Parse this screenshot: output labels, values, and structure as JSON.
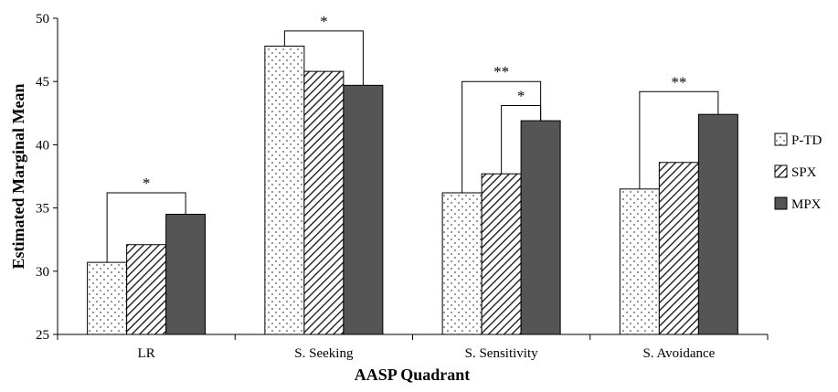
{
  "chart_data": {
    "type": "bar",
    "title": "",
    "xlabel": "AASP Quadrant",
    "ylabel": "Estimated Marginal Mean",
    "categories": [
      "LR",
      "S. Seeking",
      "S. Sensitivity",
      "S. Avoidance"
    ],
    "ylim": [
      25,
      50
    ],
    "yticks": [
      25,
      30,
      35,
      40,
      45,
      50
    ],
    "grid": false,
    "legend_position": "right",
    "series": [
      {
        "name": "P-TD",
        "pattern": "dotted",
        "color": "#ffffff",
        "values": [
          30.7,
          47.8,
          36.2,
          36.5
        ]
      },
      {
        "name": "SPX",
        "pattern": "diagonal-hatch",
        "color": "#ffffff",
        "values": [
          32.1,
          45.8,
          37.7,
          38.6
        ]
      },
      {
        "name": "MPX",
        "pattern": "solid",
        "color": "#555555",
        "values": [
          34.5,
          44.7,
          41.9,
          42.4
        ]
      }
    ],
    "annotations": [
      {
        "category": 0,
        "from_series": 0,
        "to_series": 2,
        "level": 36.2,
        "label": "*"
      },
      {
        "category": 1,
        "from_series": 0,
        "to_series": 2,
        "level": 49.0,
        "label": "*"
      },
      {
        "category": 2,
        "from_series": 0,
        "to_series": 2,
        "level": 45.0,
        "label": "**"
      },
      {
        "category": 2,
        "from_series": 1,
        "to_series": 2,
        "level": 43.1,
        "label": "*"
      },
      {
        "category": 3,
        "from_series": 0,
        "to_series": 2,
        "level": 44.2,
        "label": "**"
      }
    ]
  }
}
